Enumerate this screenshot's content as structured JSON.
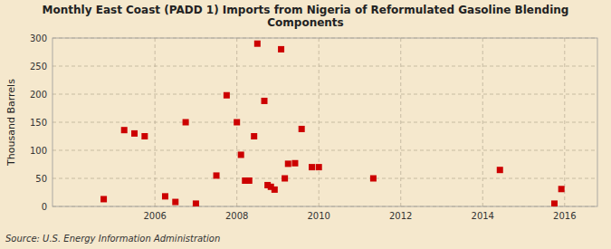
{
  "chart_data": {
    "type": "scatter",
    "title": "Monthly East Coast (PADD 1) Imports from Nigeria of Reformulated Gasoline Blending\nComponents",
    "ylabel": "Thousand Barrels",
    "source": "Source: U.S. Energy Information Administration",
    "color": "#cc0000",
    "marker": "square",
    "grid": true,
    "xlim": [
      2003.5,
      2016.8
    ],
    "ylim": [
      0,
      300
    ],
    "xticks": [
      2006,
      2008,
      2010,
      2012,
      2014,
      2016
    ],
    "yticks": [
      0,
      50,
      100,
      150,
      200,
      250,
      300
    ],
    "x": [
      2004.75,
      2005.25,
      2005.5,
      2005.75,
      2006.25,
      2006.5,
      2006.75,
      2007.0,
      2007.5,
      2007.75,
      2008.0,
      2008.1,
      2008.2,
      2008.3,
      2008.42,
      2008.5,
      2008.67,
      2008.75,
      2008.83,
      2008.92,
      2009.08,
      2009.17,
      2009.25,
      2009.42,
      2009.58,
      2009.83,
      2010.0,
      2011.33,
      2014.42,
      2015.75,
      2015.92
    ],
    "values": [
      13,
      136,
      130,
      125,
      18,
      8,
      150,
      5,
      55,
      198,
      150,
      92,
      46,
      46,
      125,
      290,
      188,
      38,
      35,
      30,
      280,
      50,
      76,
      77,
      138,
      70,
      70,
      50,
      65,
      5,
      31
    ]
  }
}
